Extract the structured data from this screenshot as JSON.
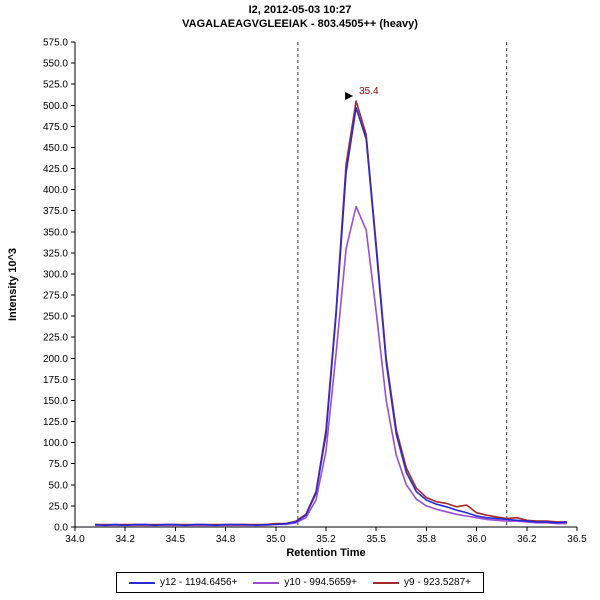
{
  "chart_data": {
    "type": "line",
    "title": "I2, 2012-05-03 10:27",
    "subtitle": "VAGALAEAGVGLEEIAK - 803.4505++ (heavy)",
    "xlabel": "Retention Time",
    "ylabel": "Intensity 10^3",
    "xlim": [
      34.0,
      36.5
    ],
    "ylim": [
      0,
      575
    ],
    "grid": false,
    "legend_position": "bottom",
    "y_ticks": {
      "min": 0,
      "max": 575,
      "step": 25
    },
    "x_tick_values": [
      34.0,
      34.25,
      34.5,
      34.75,
      35.0,
      35.25,
      35.5,
      35.75,
      36.0,
      36.25,
      36.5
    ],
    "x_tick_labels": [
      "34.0",
      "34.2",
      "34.5",
      "34.8",
      "35.0",
      "35.2",
      "35.5",
      "35.8",
      "36.0",
      "36.2",
      "36.5"
    ],
    "x": [
      34.1,
      34.15,
      34.2,
      34.25,
      34.3,
      34.35,
      34.4,
      34.45,
      34.5,
      34.55,
      34.6,
      34.65,
      34.7,
      34.75,
      34.8,
      34.85,
      34.9,
      34.95,
      35.0,
      35.05,
      35.1,
      35.15,
      35.2,
      35.25,
      35.3,
      35.35,
      35.4,
      35.45,
      35.5,
      35.55,
      35.6,
      35.65,
      35.7,
      35.75,
      35.8,
      35.85,
      35.9,
      35.95,
      36.0,
      36.05,
      36.1,
      36.15,
      36.2,
      36.25,
      36.3,
      36.35,
      36.4,
      36.45
    ],
    "series": [
      {
        "name": "y12 - 1194.6456+",
        "color": "#2A2AD4",
        "values": [
          3,
          2,
          3,
          2,
          3,
          3,
          2,
          3,
          3,
          2,
          3,
          3,
          2,
          3,
          3,
          3,
          2,
          3,
          3,
          4,
          6,
          14,
          40,
          110,
          250,
          420,
          497,
          460,
          330,
          195,
          110,
          65,
          42,
          32,
          27,
          24,
          20,
          17,
          13,
          11,
          10,
          9,
          8,
          7,
          6,
          6,
          5,
          6
        ]
      },
      {
        "name": "y10 - 994.5659+",
        "color": "#9A4FD1",
        "values": [
          2,
          2,
          2,
          2,
          2,
          2,
          2,
          2,
          2,
          2,
          2,
          2,
          2,
          2,
          2,
          2,
          2,
          2,
          3,
          3,
          5,
          11,
          32,
          90,
          205,
          330,
          380,
          352,
          255,
          150,
          85,
          50,
          33,
          25,
          21,
          18,
          15,
          13,
          11,
          9,
          8,
          7,
          7,
          6,
          5,
          5,
          4,
          4
        ]
      },
      {
        "name": "y9 - 923.5287+",
        "color": "#A52A2A",
        "values": [
          3,
          3,
          3,
          3,
          3,
          3,
          3,
          3,
          3,
          3,
          3,
          3,
          3,
          3,
          3,
          3,
          3,
          3,
          4,
          4,
          7,
          15,
          42,
          115,
          255,
          430,
          505,
          465,
          335,
          200,
          115,
          70,
          46,
          35,
          30,
          28,
          24,
          26,
          17,
          14,
          12,
          10,
          11,
          8,
          7,
          7,
          6,
          6
        ]
      }
    ],
    "draw_order": [
      1,
      2,
      0
    ],
    "integration_boundaries": [
      35.11,
      36.15
    ],
    "peak_annotation": {
      "label": "35.4",
      "rt": 35.4,
      "intensity": 505,
      "color": "#8B0000"
    }
  }
}
